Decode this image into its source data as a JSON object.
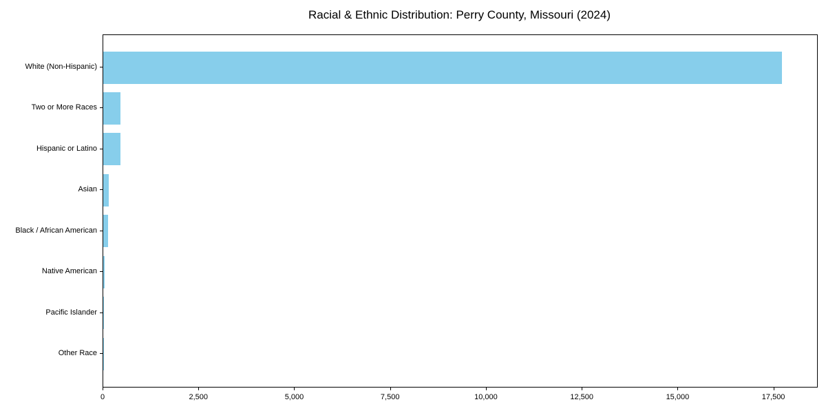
{
  "chart_data": {
    "type": "bar",
    "orientation": "horizontal",
    "title": "Racial & Ethnic Distribution: Perry County, Missouri (2024)",
    "categories": [
      "White (Non-Hispanic)",
      "Two or More Races",
      "Hispanic or Latino",
      "Asian",
      "Black / African American",
      "Native American",
      "Pacific Islander",
      "Other Race"
    ],
    "values": [
      17700,
      455,
      450,
      145,
      125,
      30,
      10,
      5
    ],
    "xlabel": "",
    "ylabel": "",
    "xlim": [
      0,
      18620
    ],
    "xticks": [
      0,
      2500,
      5000,
      7500,
      10000,
      12500,
      15000,
      17500
    ],
    "xtick_labels": [
      "0",
      "2,500",
      "5,000",
      "7,500",
      "10,000",
      "12,500",
      "15,000",
      "17,500"
    ],
    "bar_color": "#87CEEB",
    "axis_color": "#000000",
    "grid": false,
    "legend": null,
    "sort_order": "descending"
  }
}
